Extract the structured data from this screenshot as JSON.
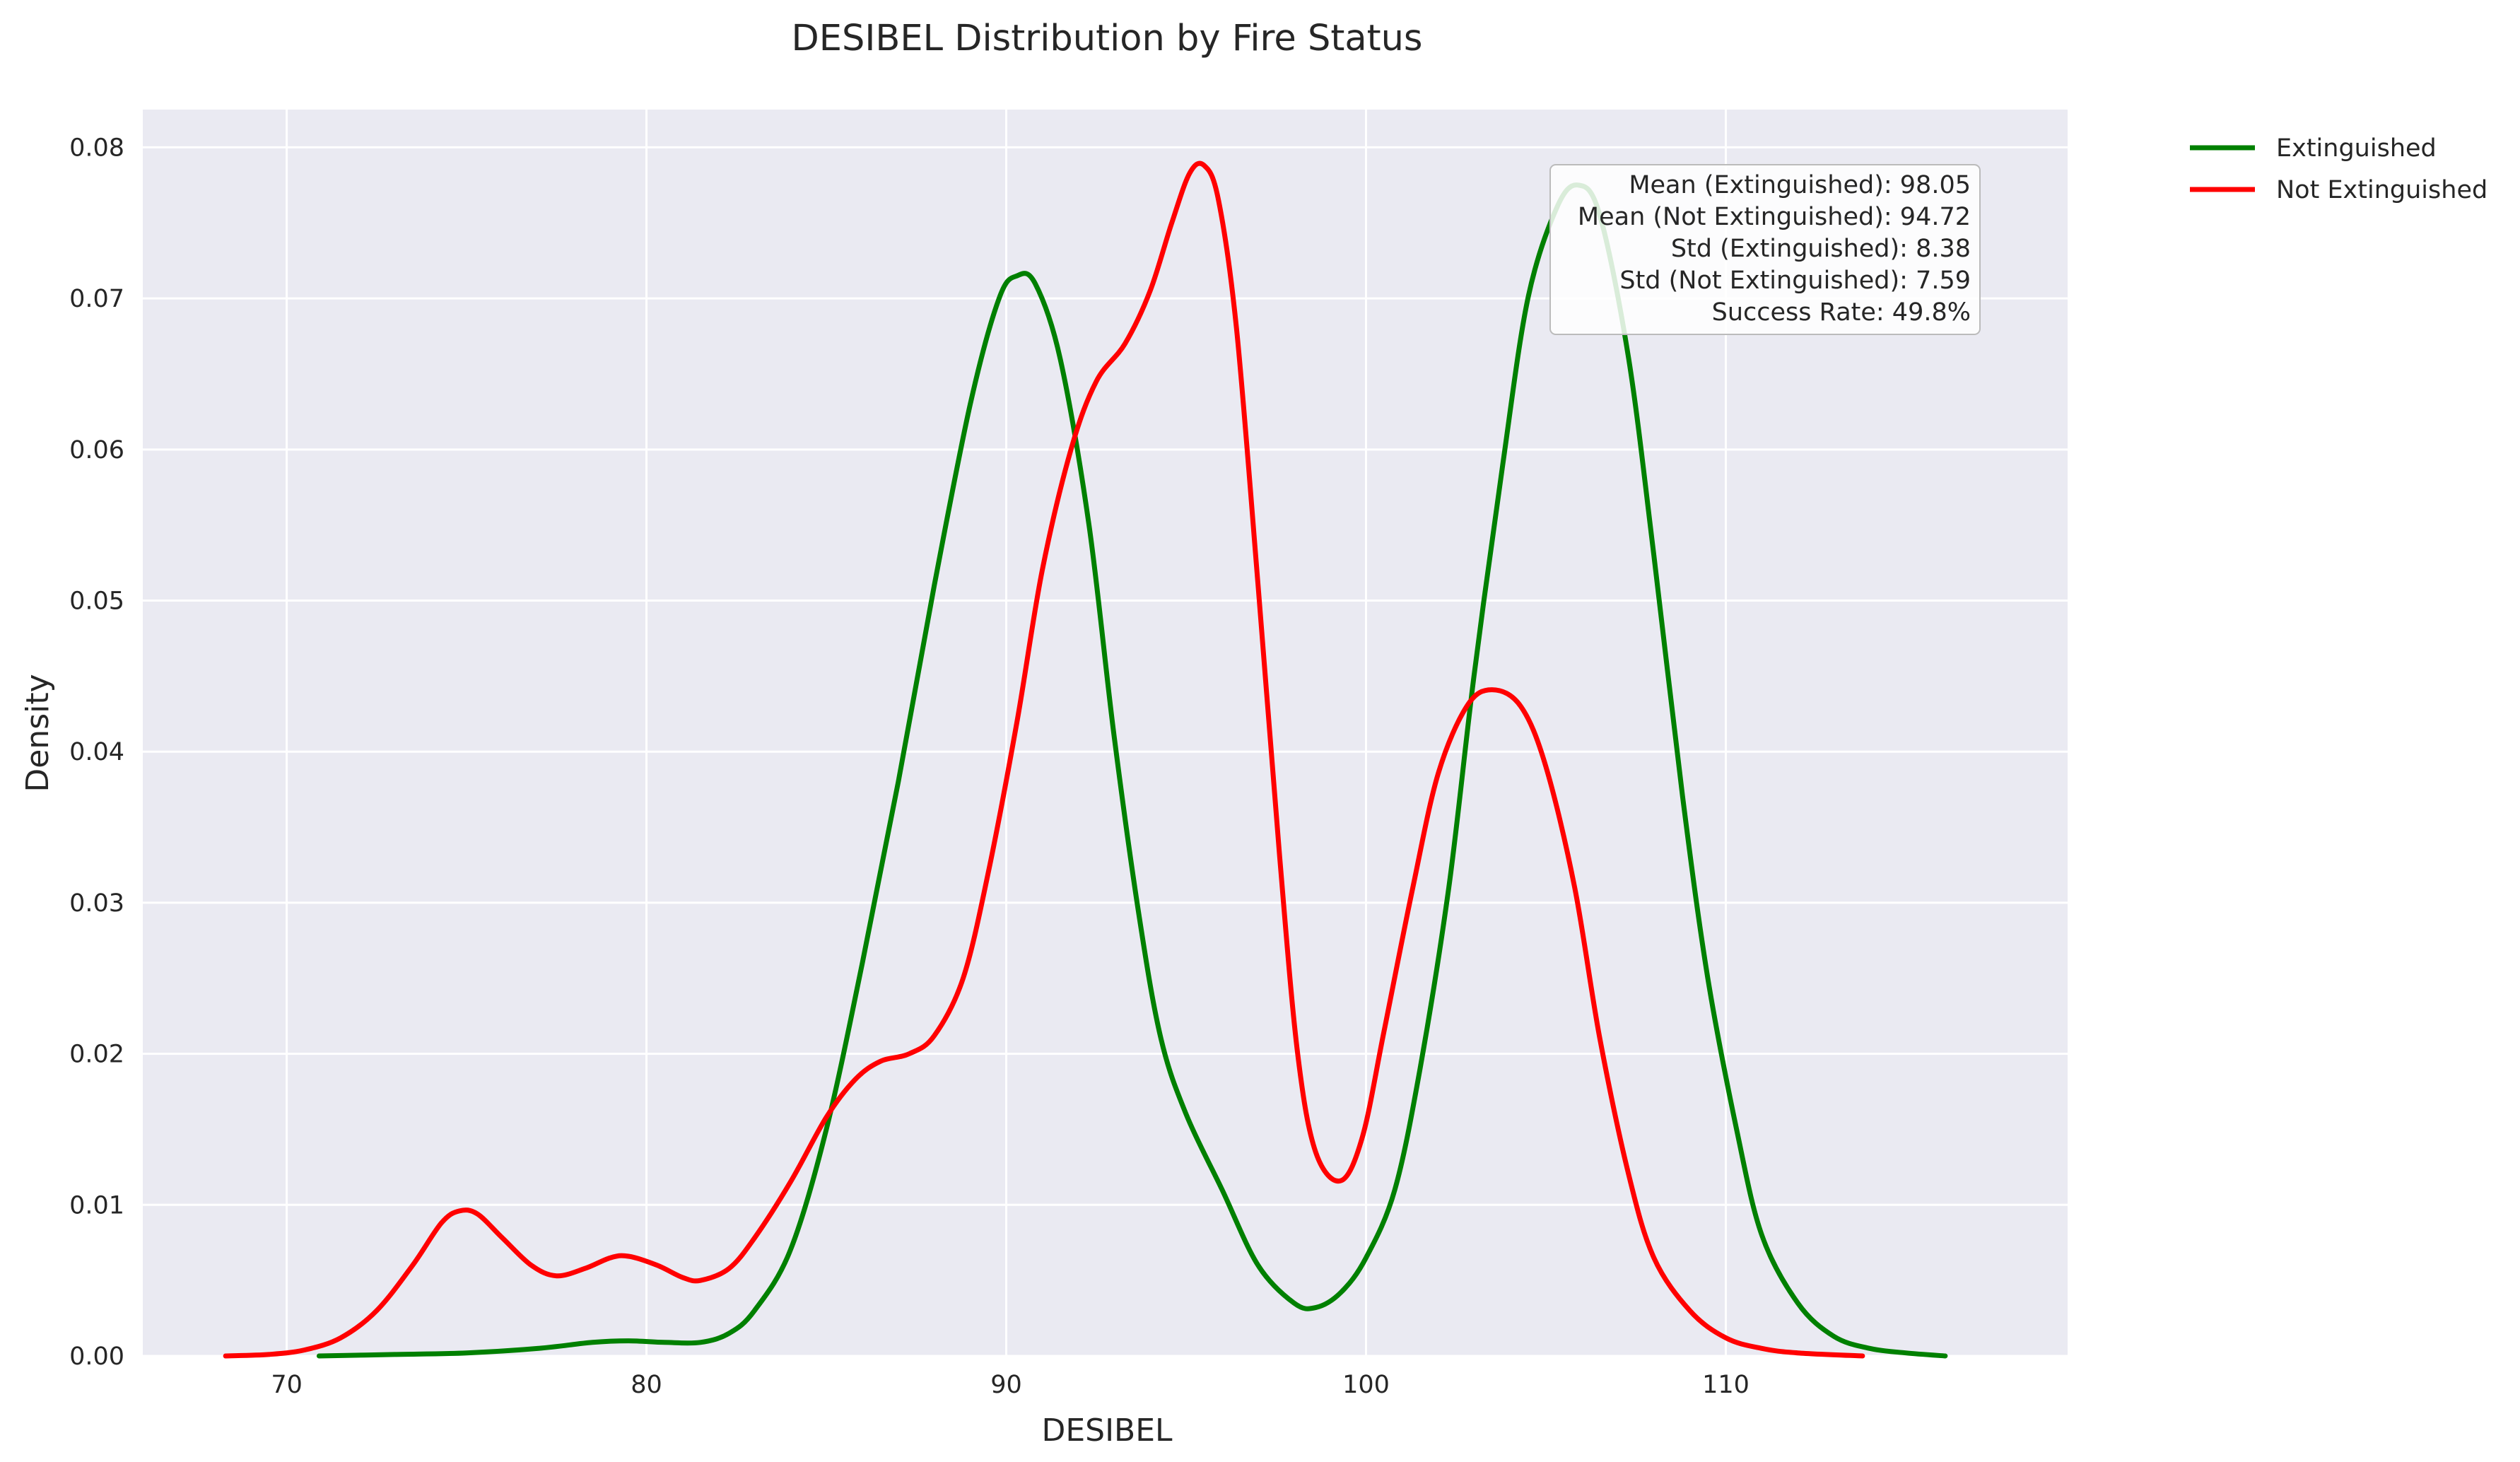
{
  "chart_data": {
    "type": "line",
    "title": "DESIBEL Distribution by Fire Status",
    "xlabel": "DESIBEL",
    "ylabel": "Density",
    "xlim": [
      66,
      119.5
    ],
    "ylim": [
      0,
      0.0825
    ],
    "xticks": [
      70,
      80,
      90,
      100,
      110
    ],
    "yticks": [
      0.0,
      0.01,
      0.02,
      0.03,
      0.04,
      0.05,
      0.06,
      0.07,
      0.08
    ],
    "ytick_labels": [
      "0.00",
      "0.01",
      "0.02",
      "0.03",
      "0.04",
      "0.05",
      "0.06",
      "0.07",
      "0.08"
    ],
    "grid": true,
    "legend_position": "outside-top-right",
    "series": [
      {
        "name": "Extinguished",
        "color": "#008000",
        "points": [
          [
            70.9,
            0.0
          ],
          [
            73.0,
            0.0001
          ],
          [
            75.0,
            0.0002
          ],
          [
            77.0,
            0.0005
          ],
          [
            78.5,
            0.0009
          ],
          [
            79.5,
            0.001
          ],
          [
            80.5,
            0.0009
          ],
          [
            81.5,
            0.0009
          ],
          [
            82.3,
            0.0015
          ],
          [
            83.0,
            0.003
          ],
          [
            84.0,
            0.007
          ],
          [
            85.0,
            0.015
          ],
          [
            86.0,
            0.026
          ],
          [
            87.0,
            0.038
          ],
          [
            88.0,
            0.051
          ],
          [
            89.0,
            0.063
          ],
          [
            89.8,
            0.07
          ],
          [
            90.3,
            0.0715
          ],
          [
            90.8,
            0.071
          ],
          [
            91.5,
            0.066
          ],
          [
            92.3,
            0.055
          ],
          [
            93.0,
            0.041
          ],
          [
            93.7,
            0.029
          ],
          [
            94.3,
            0.021
          ],
          [
            95.0,
            0.016
          ],
          [
            96.0,
            0.011
          ],
          [
            97.0,
            0.006
          ],
          [
            98.0,
            0.0035
          ],
          [
            98.6,
            0.0032
          ],
          [
            99.3,
            0.0042
          ],
          [
            100.0,
            0.0065
          ],
          [
            100.8,
            0.011
          ],
          [
            101.5,
            0.019
          ],
          [
            102.3,
            0.031
          ],
          [
            103.0,
            0.045
          ],
          [
            103.8,
            0.059
          ],
          [
            104.5,
            0.07
          ],
          [
            105.3,
            0.076
          ],
          [
            105.9,
            0.0775
          ],
          [
            106.5,
            0.0755
          ],
          [
            107.3,
            0.066
          ],
          [
            108.0,
            0.053
          ],
          [
            108.8,
            0.037
          ],
          [
            109.5,
            0.025
          ],
          [
            110.3,
            0.015
          ],
          [
            111.0,
            0.008
          ],
          [
            112.0,
            0.0035
          ],
          [
            113.0,
            0.0013
          ],
          [
            114.0,
            0.0005
          ],
          [
            115.0,
            0.0002
          ],
          [
            116.1,
            0.0
          ]
        ]
      },
      {
        "name": "Not Extinguished",
        "color": "#ff0000",
        "points": [
          [
            68.3,
            0.0
          ],
          [
            69.5,
            0.0001
          ],
          [
            70.5,
            0.0004
          ],
          [
            71.5,
            0.0012
          ],
          [
            72.5,
            0.003
          ],
          [
            73.5,
            0.006
          ],
          [
            74.3,
            0.0088
          ],
          [
            74.8,
            0.0096
          ],
          [
            75.3,
            0.0094
          ],
          [
            76.0,
            0.0078
          ],
          [
            76.8,
            0.006
          ],
          [
            77.5,
            0.0053
          ],
          [
            78.3,
            0.0058
          ],
          [
            79.0,
            0.0065
          ],
          [
            79.5,
            0.0066
          ],
          [
            80.3,
            0.006
          ],
          [
            81.0,
            0.0052
          ],
          [
            81.5,
            0.005
          ],
          [
            82.3,
            0.0058
          ],
          [
            83.0,
            0.0078
          ],
          [
            84.0,
            0.0115
          ],
          [
            85.0,
            0.0158
          ],
          [
            85.8,
            0.0183
          ],
          [
            86.5,
            0.0195
          ],
          [
            87.3,
            0.02
          ],
          [
            88.0,
            0.0212
          ],
          [
            88.8,
            0.025
          ],
          [
            89.5,
            0.032
          ],
          [
            90.3,
            0.042
          ],
          [
            91.0,
            0.052
          ],
          [
            91.8,
            0.06
          ],
          [
            92.5,
            0.0645
          ],
          [
            93.3,
            0.067
          ],
          [
            94.0,
            0.0705
          ],
          [
            94.6,
            0.075
          ],
          [
            95.1,
            0.0783
          ],
          [
            95.5,
            0.0788
          ],
          [
            95.9,
            0.0765
          ],
          [
            96.4,
            0.068
          ],
          [
            97.0,
            0.051
          ],
          [
            97.6,
            0.033
          ],
          [
            98.1,
            0.02
          ],
          [
            98.6,
            0.0135
          ],
          [
            99.3,
            0.0116
          ],
          [
            99.9,
            0.0145
          ],
          [
            100.5,
            0.0215
          ],
          [
            101.3,
            0.031
          ],
          [
            102.0,
            0.0385
          ],
          [
            102.8,
            0.043
          ],
          [
            103.5,
            0.0441
          ],
          [
            104.3,
            0.043
          ],
          [
            105.0,
            0.039
          ],
          [
            105.8,
            0.031
          ],
          [
            106.5,
            0.021
          ],
          [
            107.3,
            0.012
          ],
          [
            108.0,
            0.0065
          ],
          [
            109.0,
            0.003
          ],
          [
            110.0,
            0.0012
          ],
          [
            111.0,
            0.0005
          ],
          [
            112.0,
            0.0002
          ],
          [
            113.8,
            0.0
          ]
        ]
      }
    ],
    "annotations": [
      "Mean (Extinguished): 98.05",
      "Mean (Not Extinguished): 94.72",
      "Std (Extinguished): 8.38",
      "Std (Not Extinguished): 7.59",
      "Success Rate: 49.8%"
    ]
  },
  "colors": {
    "plot_background": "#eaeaf2",
    "grid": "#ffffff"
  }
}
